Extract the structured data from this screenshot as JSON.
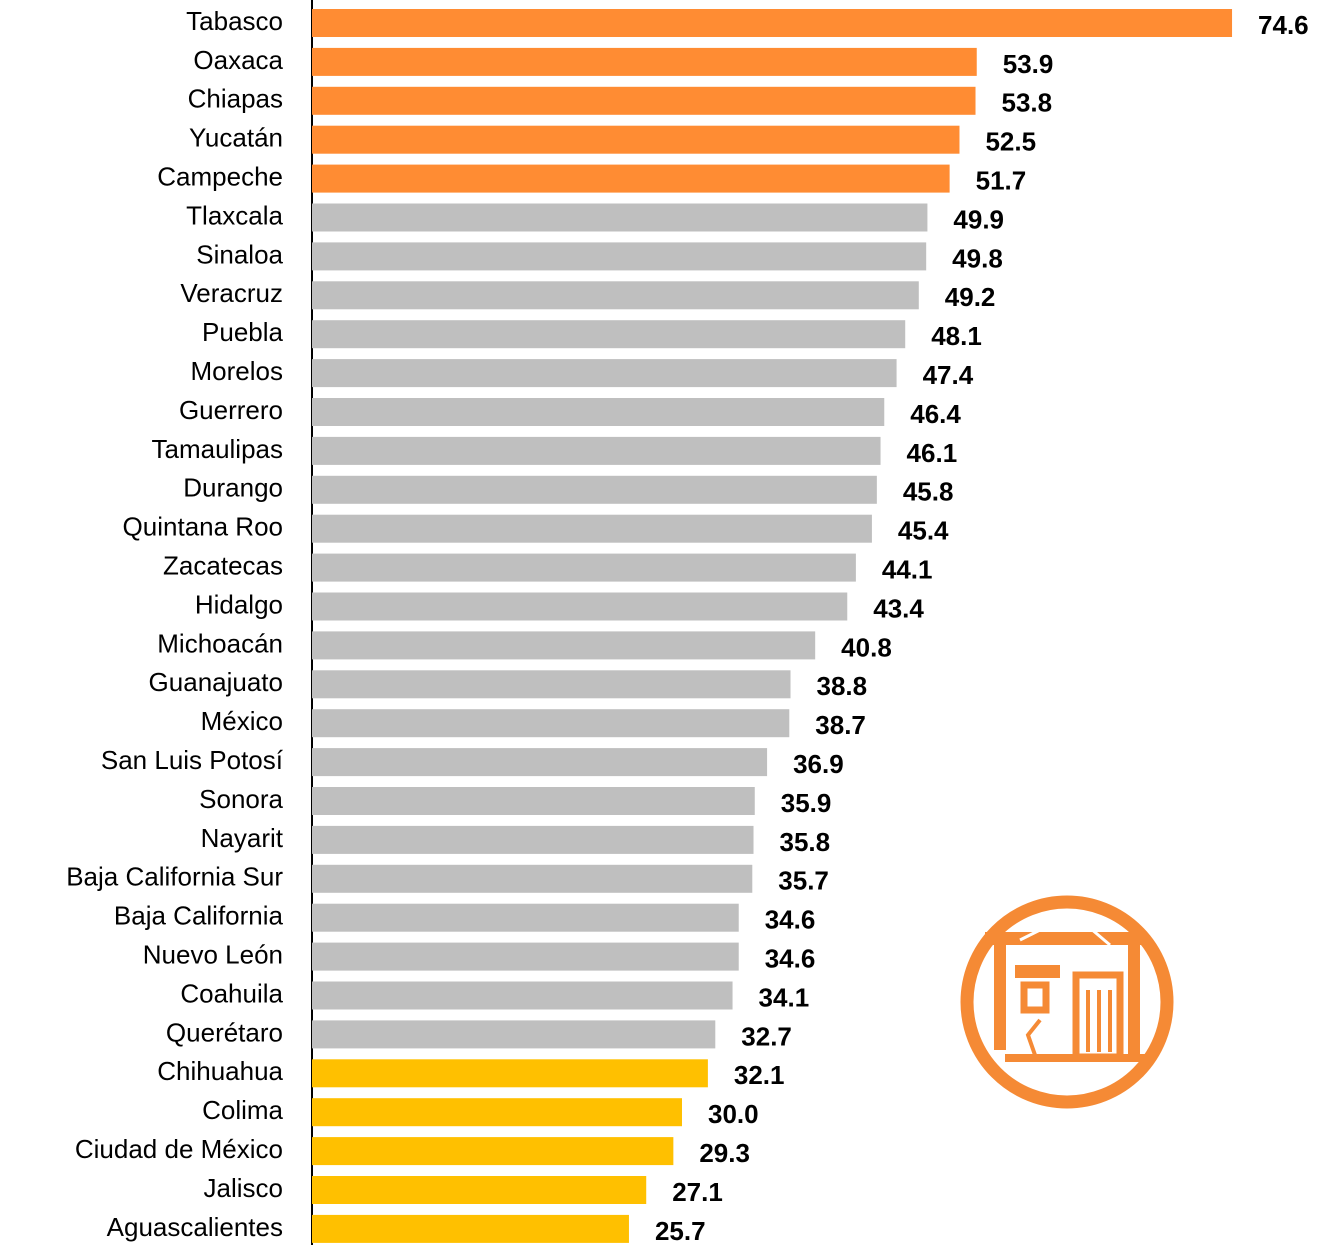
{
  "chart_data": {
    "type": "bar",
    "orientation": "horizontal",
    "categories": [
      "Tabasco",
      "Oaxaca",
      "Chiapas",
      "Yucatán",
      "Campeche",
      "Tlaxcala",
      "Sinaloa",
      "Veracruz",
      "Puebla",
      "Morelos",
      "Guerrero",
      "Tamaulipas",
      "Durango",
      "Quintana Roo",
      "Zacatecas",
      "Hidalgo",
      "Michoacán",
      "Guanajuato",
      "México",
      "San Luis Potosí",
      "Sonora",
      "Nayarit",
      "Baja California Sur",
      "Baja California",
      "Nuevo León",
      "Coahuila",
      "Querétaro",
      "Chihuahua",
      "Colima",
      "Ciudad de México",
      "Jalisco",
      "Aguascalientes"
    ],
    "values": [
      74.6,
      53.9,
      53.8,
      52.5,
      51.7,
      49.9,
      49.8,
      49.2,
      48.1,
      47.4,
      46.4,
      46.1,
      45.8,
      45.4,
      44.1,
      43.4,
      40.8,
      38.8,
      38.7,
      36.9,
      35.9,
      35.8,
      35.7,
      34.6,
      34.6,
      34.1,
      32.7,
      32.1,
      30.0,
      29.3,
      27.1,
      25.7
    ],
    "value_labels": [
      "74.6",
      "53.9",
      "53.8",
      "52.5",
      "51.7",
      "49.9",
      "49.8",
      "49.2",
      "48.1",
      "47.4",
      "46.4",
      "46.1",
      "45.8",
      "45.4",
      "44.1",
      "43.4",
      "40.8",
      "38.8",
      "38.7",
      "36.9",
      "35.9",
      "35.8",
      "35.7",
      "34.6",
      "34.6",
      "34.1",
      "32.7",
      "32.1",
      "30.0",
      "29.3",
      "27.1",
      "25.7"
    ],
    "colors": [
      "#ff8c33",
      "#ff8c33",
      "#ff8c33",
      "#ff8c33",
      "#ff8c33",
      "#bfbfbf",
      "#bfbfbf",
      "#bfbfbf",
      "#bfbfbf",
      "#bfbfbf",
      "#bfbfbf",
      "#bfbfbf",
      "#bfbfbf",
      "#bfbfbf",
      "#bfbfbf",
      "#bfbfbf",
      "#bfbfbf",
      "#bfbfbf",
      "#bfbfbf",
      "#bfbfbf",
      "#bfbfbf",
      "#bfbfbf",
      "#bfbfbf",
      "#bfbfbf",
      "#bfbfbf",
      "#bfbfbf",
      "#bfbfbf",
      "#ffc000",
      "#ffc000",
      "#ffc000",
      "#ffc000",
      "#ffc000"
    ],
    "xlim": [
      0,
      80
    ]
  }
}
